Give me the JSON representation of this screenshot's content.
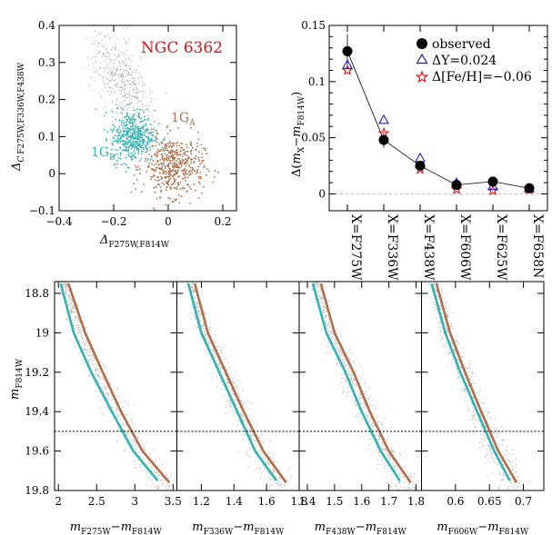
{
  "colors": {
    "gray": "#a9a9a9",
    "teal": "#34b2b2",
    "brown": "#b06f4a",
    "black": "#000000",
    "blue": "#1a1ad8",
    "red": "#e01818",
    "title": "#d11a1a"
  },
  "chart_data": [
    {
      "type": "scatter",
      "title": "NGC 6362",
      "xlabel": {
        "main": "Δ",
        "sub": "F275W,F814W"
      },
      "ylabel": {
        "main": "Δ",
        "sub_c": "C",
        "sub": "F275W,F336W,F438W"
      },
      "xlim": [
        -0.4,
        0.25
      ],
      "ylim": [
        -0.1,
        0.4
      ],
      "xticks": [
        "−0.4",
        "−0.2",
        "0",
        "0.2"
      ],
      "xtick_values": [
        -0.4,
        -0.2,
        0,
        0.2
      ],
      "yticks": [
        "−0.1",
        "0",
        "0.1",
        "0.2",
        "0.3",
        "0.4"
      ],
      "ytick_values": [
        -0.1,
        0,
        0.1,
        0.2,
        0.3,
        0.4
      ],
      "groups": [
        {
          "name": "1G",
          "sub": "A",
          "color": "brown",
          "center": [
            0.02,
            0.02
          ],
          "spread": [
            0.055,
            0.04
          ],
          "n": 500
        },
        {
          "name": "1G",
          "sub": "B",
          "color": "teal",
          "center": [
            -0.13,
            0.1
          ],
          "spread": [
            0.04,
            0.035
          ],
          "n": 450
        },
        {
          "name": "",
          "sub": "",
          "color": "gray",
          "center": [
            -0.17,
            0.25
          ],
          "spread": [
            0.045,
            0.07
          ],
          "n": 500
        }
      ]
    },
    {
      "type": "line",
      "ylabel": {
        "pre": "Δ(",
        "m": "m",
        "sub1": "X",
        "mid": "−",
        "m2": "m",
        "sub2": "F814W",
        "post": ")"
      },
      "ylim": [
        -0.015,
        0.15
      ],
      "yticks": [
        "0",
        "0.05",
        "0.1",
        "0.15"
      ],
      "ytick_values": [
        0,
        0.05,
        0.1,
        0.15
      ],
      "categories": [
        "X=F275W",
        "X=F336W",
        "X=F438W",
        "X=F606W",
        "X=F625W",
        "X=F658N"
      ],
      "series": [
        {
          "name": "observed",
          "marker": "filled-circle",
          "color": "black",
          "values": [
            0.127,
            0.048,
            0.025,
            0.008,
            0.011,
            0.005
          ],
          "errors": [
            0.015,
            0.007,
            0.004,
            0.003,
            0.003,
            0.002
          ]
        },
        {
          "name": "ΔY=0.024",
          "marker": "open-triangle",
          "color": "blue",
          "values": [
            0.115,
            0.066,
            0.032,
            0.01,
            0.007,
            0.005
          ]
        },
        {
          "name": "Δ[Fe/H]=−0.06",
          "marker": "open-star",
          "color": "red",
          "values": [
            0.11,
            0.054,
            0.022,
            0.004,
            0.003,
            0.004
          ]
        }
      ],
      "legend": "top-right",
      "reference_line": 0
    },
    {
      "type": "scatter",
      "ylabel": {
        "main": "m",
        "sub": "F814W"
      },
      "ylim": [
        19.8,
        18.74
      ],
      "yticks": [
        "18.8",
        "19",
        "19.2",
        "19.4",
        "19.6",
        "19.8"
      ],
      "ytick_values": [
        18.8,
        19.0,
        19.2,
        19.4,
        19.6,
        19.8
      ],
      "hline": 19.5,
      "panels": [
        {
          "xlabel": {
            "main": "m",
            "sub1": "F275W",
            "mid": "−m",
            "sub2": "F814W"
          },
          "xlim": [
            1.95,
            3.55
          ],
          "xticks": [
            "2",
            "2.5",
            "3",
            "3.5"
          ],
          "xtick_values": [
            2,
            2.5,
            3,
            3.5
          ],
          "fiducial_teal": [
            [
              2.03,
              18.75
            ],
            [
              2.2,
              19.0
            ],
            [
              2.43,
              19.2
            ],
            [
              2.7,
              19.4
            ],
            [
              2.98,
              19.6
            ],
            [
              3.3,
              19.75
            ]
          ],
          "fiducial_brown": [
            [
              2.13,
              18.75
            ],
            [
              2.35,
              19.0
            ],
            [
              2.58,
              19.2
            ],
            [
              2.82,
              19.4
            ],
            [
              3.1,
              19.6
            ],
            [
              3.45,
              19.76
            ]
          ]
        },
        {
          "xlabel": {
            "main": "m",
            "sub1": "F336W",
            "mid": "−m",
            "sub2": "F814W"
          },
          "xlim": [
            1.05,
            1.8
          ],
          "xticks": [
            "1.2",
            "1.4",
            "1.6",
            "1.8"
          ],
          "xtick_values": [
            1.2,
            1.4,
            1.6,
            1.8
          ],
          "fiducial_teal": [
            [
              1.12,
              18.75
            ],
            [
              1.2,
              19.0
            ],
            [
              1.31,
              19.2
            ],
            [
              1.42,
              19.4
            ],
            [
              1.53,
              19.6
            ],
            [
              1.66,
              19.75
            ]
          ],
          "fiducial_brown": [
            [
              1.16,
              18.75
            ],
            [
              1.24,
              19.0
            ],
            [
              1.35,
              19.2
            ],
            [
              1.46,
              19.4
            ],
            [
              1.58,
              19.6
            ],
            [
              1.72,
              19.76
            ]
          ]
        },
        {
          "xlabel": {
            "main": "m",
            "sub1": "F438W",
            "mid": "−m",
            "sub2": "F814W"
          },
          "xlim": [
            1.37,
            1.82
          ],
          "xticks": [
            "1.4",
            "1.5",
            "1.6",
            "1.7",
            "1.8"
          ],
          "xtick_values": [
            1.4,
            1.5,
            1.6,
            1.7,
            1.8
          ],
          "fiducial_teal": [
            [
              1.42,
              18.75
            ],
            [
              1.47,
              19.0
            ],
            [
              1.54,
              19.2
            ],
            [
              1.6,
              19.4
            ],
            [
              1.67,
              19.6
            ],
            [
              1.74,
              19.75
            ]
          ],
          "fiducial_brown": [
            [
              1.45,
              18.75
            ],
            [
              1.5,
              19.0
            ],
            [
              1.57,
              19.2
            ],
            [
              1.63,
              19.4
            ],
            [
              1.7,
              19.6
            ],
            [
              1.78,
              19.76
            ]
          ]
        },
        {
          "xlabel": {
            "main": "m",
            "sub1": "F606W",
            "mid": "−m",
            "sub2": "F814W"
          },
          "xlim": [
            0.55,
            0.73
          ],
          "xticks": [
            "0.6",
            "0.65",
            "0.7"
          ],
          "xtick_values": [
            0.6,
            0.65,
            0.7
          ],
          "fiducial_teal": [
            [
              0.565,
              18.75
            ],
            [
              0.585,
              19.0
            ],
            [
              0.607,
              19.2
            ],
            [
              0.632,
              19.4
            ],
            [
              0.657,
              19.6
            ],
            [
              0.68,
              19.75
            ]
          ],
          "fiducial_brown": [
            [
              0.572,
              18.75
            ],
            [
              0.592,
              19.0
            ],
            [
              0.614,
              19.2
            ],
            [
              0.638,
              19.4
            ],
            [
              0.663,
              19.6
            ],
            [
              0.69,
              19.76
            ]
          ]
        }
      ]
    }
  ]
}
